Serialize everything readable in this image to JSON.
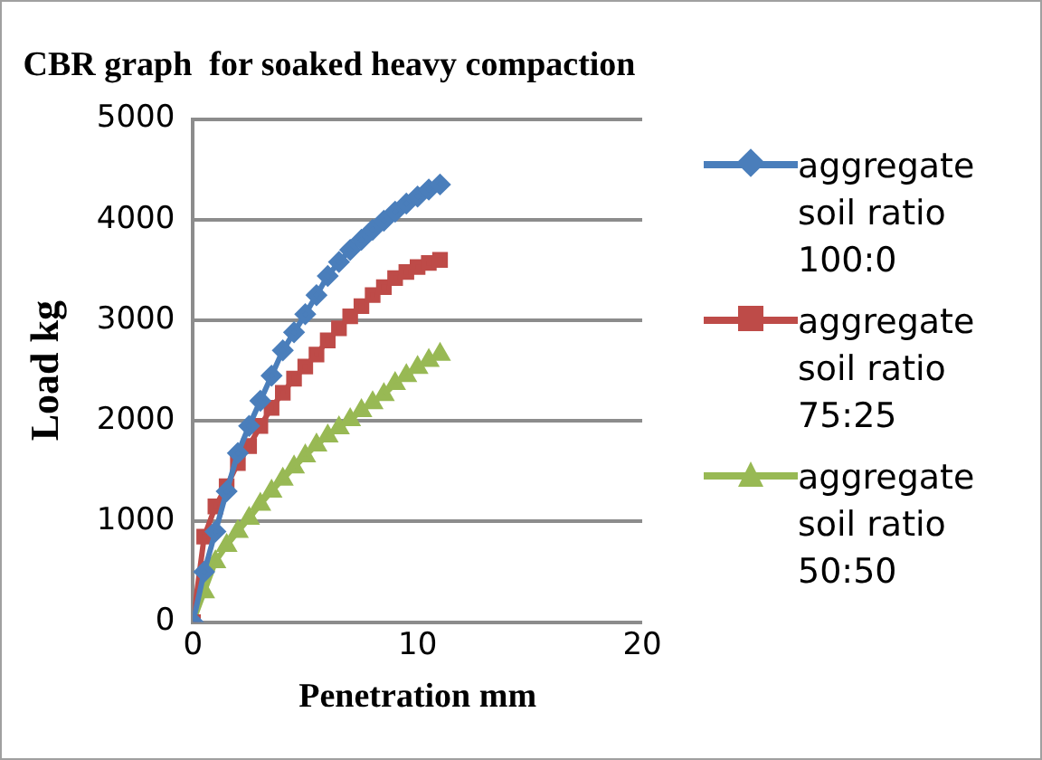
{
  "chart_data": {
    "type": "line",
    "title": "CBR graph  for soaked heavy compaction",
    "xlabel": "Penetration mm",
    "ylabel": "Load kg",
    "x": [
      0,
      0.5,
      1,
      1.5,
      2,
      2.5,
      3,
      3.5,
      4,
      4.5,
      5,
      5.5,
      6,
      6.5,
      7,
      7.5,
      8,
      8.5,
      9,
      9.5,
      10,
      10.5,
      11
    ],
    "series": [
      {
        "name": "aggregate soil ratio 100:0",
        "color": "#4a7ebb",
        "marker": "diamond",
        "values": [
          0,
          500,
          900,
          1300,
          1680,
          1950,
          2200,
          2450,
          2700,
          2880,
          3060,
          3250,
          3440,
          3580,
          3700,
          3800,
          3900,
          3990,
          4080,
          4160,
          4230,
          4300,
          4350
        ]
      },
      {
        "name": "aggregate soil ratio 75:25",
        "color": "#be4b48",
        "marker": "square",
        "values": [
          0,
          850,
          1150,
          1350,
          1580,
          1750,
          1950,
          2130,
          2280,
          2420,
          2540,
          2660,
          2800,
          2920,
          3040,
          3140,
          3250,
          3330,
          3420,
          3480,
          3530,
          3570,
          3600
        ]
      },
      {
        "name": "aggregate soil ratio 50:50",
        "color": "#98b954",
        "marker": "triangle",
        "values": [
          0,
          300,
          600,
          760,
          900,
          1030,
          1170,
          1300,
          1420,
          1540,
          1650,
          1760,
          1850,
          1930,
          2010,
          2100,
          2180,
          2260,
          2370,
          2450,
          2530,
          2600,
          2660
        ]
      }
    ],
    "xlim": [
      0,
      20
    ],
    "xticks": [
      0,
      10,
      20
    ],
    "ylim": [
      0,
      5000
    ],
    "yticks": [
      0,
      1000,
      2000,
      3000,
      4000,
      5000
    ],
    "grid": "y",
    "legend": "right",
    "line_style": "solid"
  }
}
